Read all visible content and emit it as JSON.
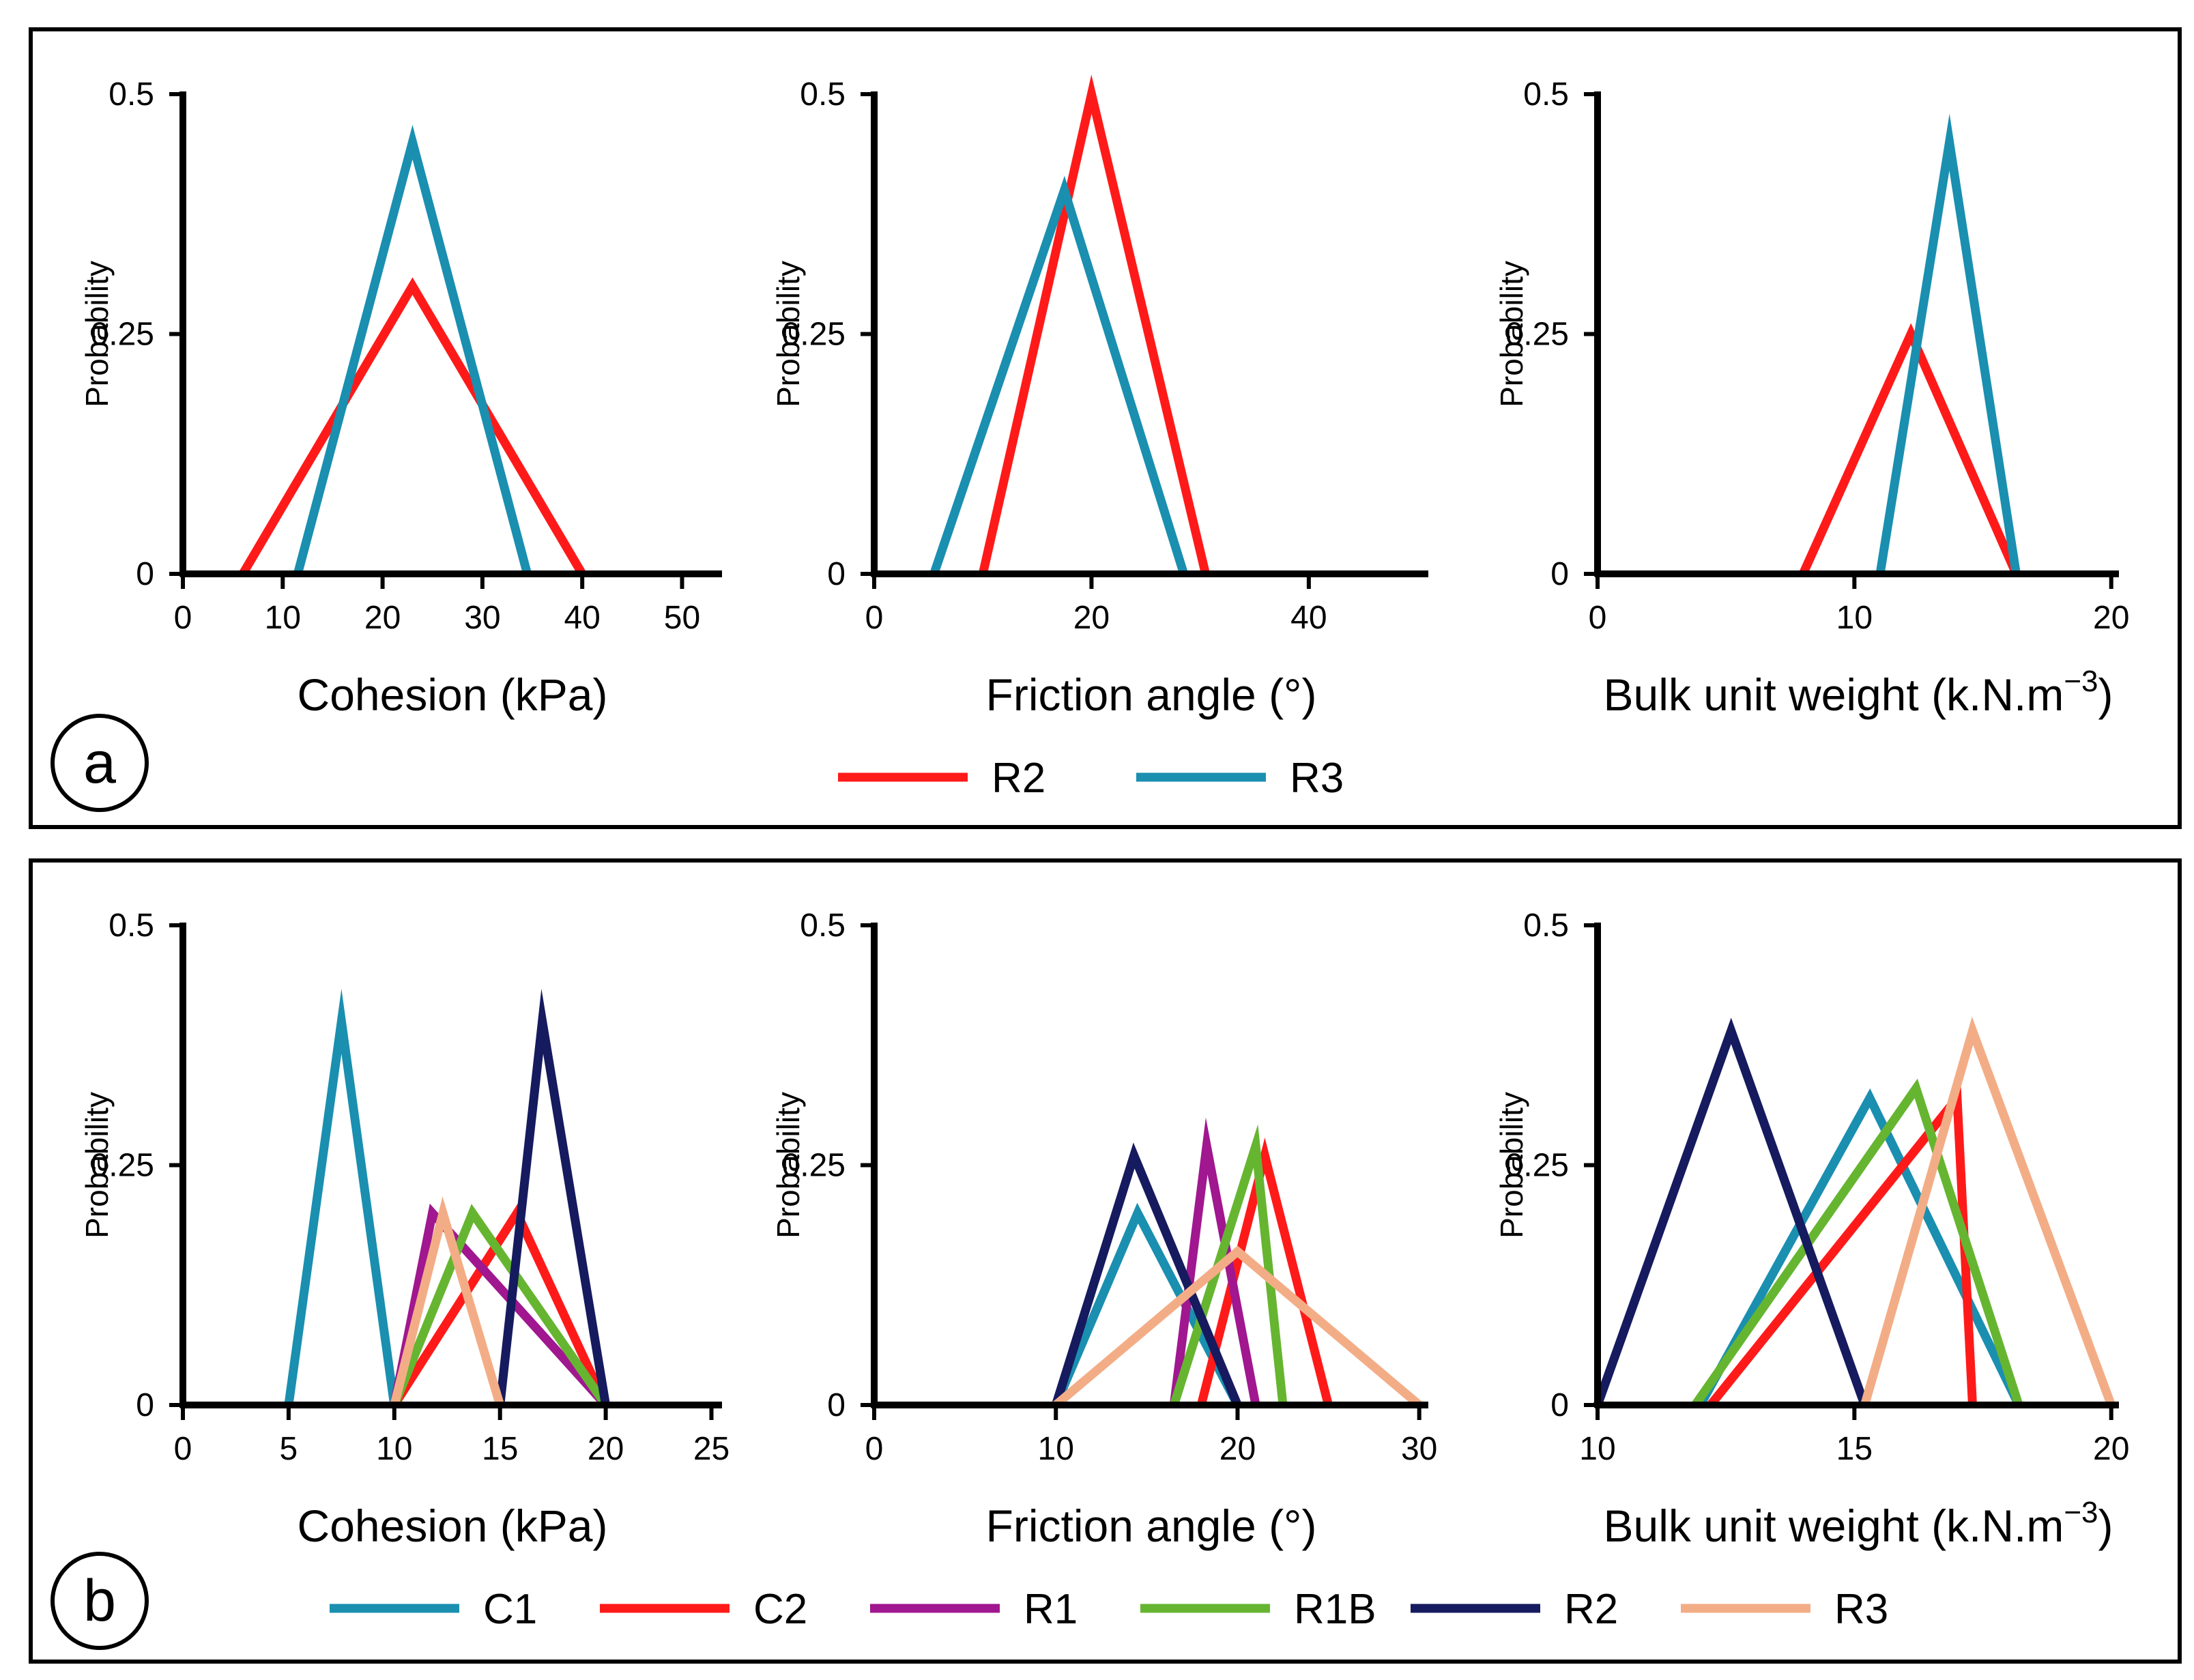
{
  "colors": {
    "C1": "#1a8fb0",
    "C2": "#ff1a1a",
    "R1": "#a0178f",
    "R1B": "#66b531",
    "R2_a": "#ff1a1a",
    "R3_a": "#1a8fb0",
    "R2_b": "#161a5e",
    "R3_b": "#f3ad86"
  },
  "panels": [
    {
      "label": "a",
      "legend": [
        {
          "name": "R2",
          "color": "#ff1a1a"
        },
        {
          "name": "R3",
          "color": "#1a8fb0"
        }
      ]
    },
    {
      "label": "b",
      "legend": [
        {
          "name": "C1",
          "color": "#1a8fb0"
        },
        {
          "name": "C2",
          "color": "#ff1a1a"
        },
        {
          "name": "R1",
          "color": "#a0178f"
        },
        {
          "name": "R1B",
          "color": "#66b531"
        },
        {
          "name": "R2",
          "color": "#161a5e"
        },
        {
          "name": "R3",
          "color": "#f3ad86"
        }
      ]
    }
  ],
  "chart_data": [
    {
      "type": "line",
      "panel": "a",
      "title": "",
      "xlabel": "Cohesion (kPa)",
      "ylabel": "Probability",
      "xlim": [
        0,
        54
      ],
      "ylim": [
        0,
        0.5
      ],
      "xticks": [
        "0",
        "10",
        "20",
        "30",
        "40",
        "50"
      ],
      "xtick_values": [
        0,
        10,
        20,
        30,
        40,
        50
      ],
      "yticks": [
        "0",
        "0.25",
        "0.5"
      ],
      "ytick_values": [
        0,
        0.25,
        0.5
      ],
      "series": [
        {
          "name": "R2",
          "color": "#ff1a1a",
          "x": [
            6,
            23,
            40
          ],
          "y": [
            0,
            0.3,
            0
          ]
        },
        {
          "name": "R3",
          "color": "#1a8fb0",
          "x": [
            11.5,
            23,
            34.5
          ],
          "y": [
            0,
            0.45,
            0
          ]
        }
      ]
    },
    {
      "type": "line",
      "panel": "a",
      "title": "",
      "xlabel": "Friction angle (°)",
      "ylabel": "Probability",
      "xlim": [
        0,
        51
      ],
      "ylim": [
        0,
        0.5
      ],
      "xticks": [
        "0",
        "20",
        "40"
      ],
      "xtick_values": [
        0,
        20,
        40
      ],
      "yticks": [
        "0",
        "0.25",
        "0.5"
      ],
      "ytick_values": [
        0,
        0.25,
        0.5
      ],
      "series": [
        {
          "name": "R2",
          "color": "#ff1a1a",
          "x": [
            10,
            20,
            30.5
          ],
          "y": [
            0,
            0.5,
            0
          ]
        },
        {
          "name": "R3",
          "color": "#1a8fb0",
          "x": [
            5.5,
            17.5,
            28.5
          ],
          "y": [
            0,
            0.4,
            0
          ]
        }
      ]
    },
    {
      "type": "line",
      "panel": "a",
      "title": "",
      "xlabel": "Bulk unit weight (k.N.m",
      "xlabel_sup": "−3",
      "xlabel_end": ")",
      "ylabel": "Probability",
      "xlim": [
        0,
        20.3
      ],
      "ylim": [
        0,
        0.5
      ],
      "xticks": [
        "0",
        "10",
        "20"
      ],
      "xtick_values": [
        0,
        10,
        20
      ],
      "yticks": [
        "0",
        "0.25",
        "0.5"
      ],
      "ytick_values": [
        0,
        0.25,
        0.5
      ],
      "series": [
        {
          "name": "R2",
          "color": "#ff1a1a",
          "x": [
            8,
            12.2,
            16.3
          ],
          "y": [
            0,
            0.25,
            0
          ]
        },
        {
          "name": "R3",
          "color": "#1a8fb0",
          "x": [
            11,
            13.7,
            16.3
          ],
          "y": [
            0,
            0.45,
            0
          ]
        }
      ]
    },
    {
      "type": "line",
      "panel": "b",
      "title": "",
      "xlabel": "Cohesion (kPa)",
      "ylabel": "Probability",
      "xlim": [
        0,
        25.5
      ],
      "ylim": [
        0,
        0.5
      ],
      "xticks": [
        "0",
        "5",
        "10",
        "15",
        "20",
        "25"
      ],
      "xtick_values": [
        0,
        5,
        10,
        15,
        20,
        25
      ],
      "yticks": [
        "0",
        "0.25",
        "0.5"
      ],
      "ytick_values": [
        0,
        0.25,
        0.5
      ],
      "series": [
        {
          "name": "C1",
          "color": "#1a8fb0",
          "x": [
            5,
            7.5,
            10
          ],
          "y": [
            0,
            0.4,
            0
          ]
        },
        {
          "name": "C2",
          "color": "#ff1a1a",
          "x": [
            10,
            15.8,
            20
          ],
          "y": [
            0,
            0.2,
            0
          ]
        },
        {
          "name": "R1",
          "color": "#a0178f",
          "x": [
            10,
            11.8,
            20
          ],
          "y": [
            0,
            0.2,
            0
          ]
        },
        {
          "name": "R1B",
          "color": "#66b531",
          "x": [
            10,
            13.7,
            20
          ],
          "y": [
            0,
            0.2,
            0
          ]
        },
        {
          "name": "R2",
          "color": "#161a5e",
          "x": [
            15,
            17,
            20
          ],
          "y": [
            0,
            0.4,
            0
          ]
        },
        {
          "name": "R3",
          "color": "#f3ad86",
          "x": [
            10,
            12.3,
            15
          ],
          "y": [
            0,
            0.2,
            0
          ]
        }
      ]
    },
    {
      "type": "line",
      "panel": "b",
      "title": "",
      "xlabel": "Friction angle (°)",
      "ylabel": "Probability",
      "xlim": [
        0,
        30.5
      ],
      "ylim": [
        0,
        0.5
      ],
      "xticks": [
        "0",
        "10",
        "20",
        "30"
      ],
      "xtick_values": [
        0,
        10,
        20,
        30
      ],
      "yticks": [
        "0",
        "0.25",
        "0.5"
      ],
      "ytick_values": [
        0,
        0.25,
        0.5
      ],
      "series": [
        {
          "name": "C1",
          "color": "#1a8fb0",
          "x": [
            10,
            14.5,
            20
          ],
          "y": [
            0,
            0.2,
            0
          ]
        },
        {
          "name": "C2",
          "color": "#ff1a1a",
          "x": [
            18,
            21.5,
            25
          ],
          "y": [
            0,
            0.26,
            0
          ]
        },
        {
          "name": "R1",
          "color": "#a0178f",
          "x": [
            16.5,
            18.3,
            21
          ],
          "y": [
            0,
            0.27,
            0
          ]
        },
        {
          "name": "R1B",
          "color": "#66b531",
          "x": [
            16.5,
            21,
            22.5
          ],
          "y": [
            0,
            0.27,
            0
          ]
        },
        {
          "name": "R2",
          "color": "#161a5e",
          "x": [
            10,
            14.3,
            20
          ],
          "y": [
            0,
            0.26,
            0
          ]
        },
        {
          "name": "R3",
          "color": "#f3ad86",
          "x": [
            10,
            20,
            30
          ],
          "y": [
            0,
            0.16,
            0
          ]
        }
      ]
    },
    {
      "type": "line",
      "panel": "b",
      "title": "",
      "xlabel": "Bulk unit weight (k.N.m",
      "xlabel_sup": "−3",
      "xlabel_end": ")",
      "ylabel": "Probability",
      "xlim": [
        10,
        20.15
      ],
      "ylim": [
        0,
        0.5
      ],
      "xticks": [
        "10",
        "15",
        "20"
      ],
      "xtick_values": [
        10,
        15,
        20
      ],
      "yticks": [
        "0",
        "0.25",
        "0.5"
      ],
      "ytick_values": [
        0,
        0.25,
        0.5
      ],
      "series": [
        {
          "name": "C1",
          "color": "#1a8fb0",
          "x": [
            12,
            15.3,
            18.2
          ],
          "y": [
            0,
            0.32,
            0
          ]
        },
        {
          "name": "C2",
          "color": "#ff1a1a",
          "x": [
            12.2,
            17,
            17.3
          ],
          "y": [
            0,
            0.32,
            0
          ]
        },
        {
          "name": "R1B",
          "color": "#66b531",
          "x": [
            11.9,
            16.2,
            18.2
          ],
          "y": [
            0,
            0.33,
            0
          ]
        },
        {
          "name": "R2",
          "color": "#161a5e",
          "x": [
            10,
            12.6,
            15.2
          ],
          "y": [
            0,
            0.39,
            0
          ]
        },
        {
          "name": "R3",
          "color": "#f3ad86",
          "x": [
            15.2,
            17.3,
            20
          ],
          "y": [
            0,
            0.39,
            0
          ]
        }
      ]
    }
  ]
}
